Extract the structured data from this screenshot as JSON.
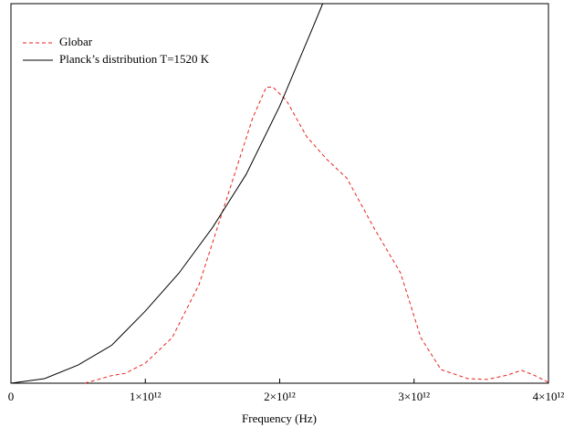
{
  "chart_data": {
    "type": "line",
    "x_label": "Frequency (Hz)",
    "xlim": [
      0,
      4000000000000
    ],
    "ylim": [
      0,
      1
    ],
    "xticks": [
      0,
      {
        "value": 1000000000000,
        "label": "1×10¹²"
      },
      {
        "value": 2000000000000,
        "label": "2×10¹²"
      },
      {
        "value": 3000000000000,
        "label": "3×10¹²"
      },
      {
        "value": 4000000000000,
        "label": "4×10¹²"
      }
    ],
    "legend": "upper-left",
    "series": [
      {
        "name": "Globar",
        "color": "#e8231c",
        "dashed": true,
        "x": [
          550000000000,
          750000000000,
          850000000000,
          1000000000000,
          1200000000000,
          1400000000000,
          1600000000000,
          1800000000000,
          1900000000000,
          1950000000000,
          2050000000000,
          2200000000000,
          2350000000000,
          2500000000000,
          2700000000000,
          2900000000000,
          3050000000000,
          3200000000000,
          3400000000000,
          3550000000000,
          3700000000000,
          3800000000000,
          3900000000000,
          4000000000000
        ],
        "values": [
          0,
          0.02,
          0.026,
          0.053,
          0.12,
          0.26,
          0.48,
          0.7,
          0.78,
          0.78,
          0.745,
          0.65,
          0.59,
          0.54,
          0.41,
          0.29,
          0.12,
          0.036,
          0.012,
          0.01,
          0.022,
          0.034,
          0.02,
          0.002
        ]
      },
      {
        "name": "Planck’s distribution T=1520 K",
        "color": "#000000",
        "dashed": false,
        "x": [
          0,
          250000000000,
          500000000000,
          750000000000,
          1000000000000,
          1250000000000,
          1500000000000,
          1750000000000,
          2000000000000,
          2250000000000,
          2320000000000
        ],
        "values": [
          0,
          0.012,
          0.048,
          0.1,
          0.19,
          0.29,
          0.41,
          0.55,
          0.73,
          0.94,
          1.0
        ]
      }
    ]
  }
}
